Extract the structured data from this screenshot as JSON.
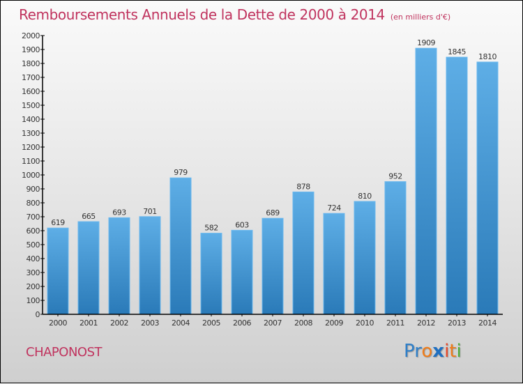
{
  "chart_data": {
    "type": "bar",
    "title": "Remboursements Annuels de la Dette de 2000 à 2014",
    "subtitle": "(en milliers d'€)",
    "xlabel": "",
    "ylabel": "",
    "categories": [
      "2000",
      "2001",
      "2002",
      "2003",
      "2004",
      "2005",
      "2006",
      "2007",
      "2008",
      "2009",
      "2010",
      "2011",
      "2012",
      "2013",
      "2014"
    ],
    "values": [
      619,
      665,
      693,
      701,
      979,
      582,
      603,
      689,
      878,
      724,
      810,
      952,
      1909,
      1845,
      1810
    ],
    "ylim": [
      0,
      2000
    ],
    "yticks": [
      0,
      100,
      200,
      300,
      400,
      500,
      600,
      700,
      800,
      900,
      1000,
      1100,
      1200,
      1300,
      1400,
      1500,
      1600,
      1700,
      1800,
      1900,
      2000
    ],
    "grid": false,
    "legend": "none",
    "bar_color": "#4a9fdc"
  },
  "footer": {
    "city": "CHAPONOST",
    "logo_letters": [
      {
        "ch": "P",
        "color": "#2f7fc8"
      },
      {
        "ch": "r",
        "color": "#2f7fc8"
      },
      {
        "ch": "o",
        "color": "#f07d1a"
      },
      {
        "ch": "x",
        "color": "#1f6fc0"
      },
      {
        "ch": "i",
        "color": "#e8492a"
      },
      {
        "ch": "t",
        "color": "#f07d1a"
      },
      {
        "ch": "i",
        "color": "#4fae3b"
      }
    ]
  }
}
